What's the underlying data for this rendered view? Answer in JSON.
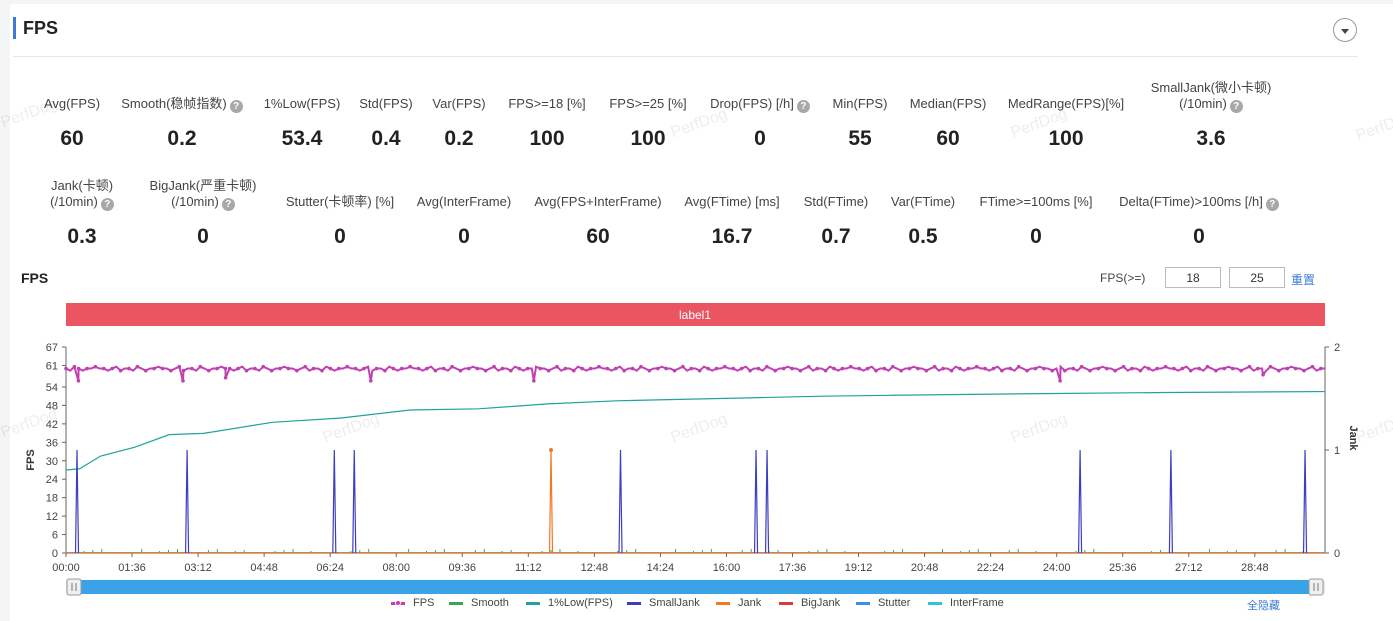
{
  "header": {
    "title": "FPS"
  },
  "metrics_row1": [
    {
      "label": "Avg(FPS)",
      "value": "60",
      "help": false,
      "cx": 72
    },
    {
      "label": "Smooth(稳帧指数)",
      "value": "0.2",
      "help": true,
      "cx": 182
    },
    {
      "label": "1%Low(FPS)",
      "value": "53.4",
      "help": false,
      "cx": 302
    },
    {
      "label": "Std(FPS)",
      "value": "0.4",
      "help": false,
      "cx": 386
    },
    {
      "label": "Var(FPS)",
      "value": "0.2",
      "help": false,
      "cx": 459
    },
    {
      "label": "FPS>=18 [%]",
      "value": "100",
      "help": false,
      "cx": 547
    },
    {
      "label": "FPS>=25 [%]",
      "value": "100",
      "help": false,
      "cx": 648
    },
    {
      "label": "Drop(FPS) [/h]",
      "value": "0",
      "help": true,
      "cx": 760
    },
    {
      "label": "Min(FPS)",
      "value": "55",
      "help": false,
      "cx": 860
    },
    {
      "label": "Median(FPS)",
      "value": "60",
      "help": false,
      "cx": 948
    },
    {
      "label": "MedRange(FPS)[%]",
      "value": "100",
      "help": false,
      "cx": 1066
    },
    {
      "label": "SmallJank(微小卡顿)",
      "label2": "(/10min)",
      "value": "3.6",
      "help": true,
      "cx": 1211
    }
  ],
  "metrics_row2": [
    {
      "label": "Jank(卡顿)",
      "label2": "(/10min)",
      "value": "0.3",
      "help": true,
      "cx": 82
    },
    {
      "label": "BigJank(严重卡顿)",
      "label2": "(/10min)",
      "value": "0",
      "help": true,
      "cx": 203
    },
    {
      "label": "Stutter(卡顿率) [%]",
      "value": "0",
      "help": false,
      "cx": 340
    },
    {
      "label": "Avg(InterFrame)",
      "value": "0",
      "help": false,
      "cx": 464
    },
    {
      "label": "Avg(FPS+InterFrame)",
      "value": "60",
      "help": false,
      "cx": 598
    },
    {
      "label": "Avg(FTime) [ms]",
      "value": "16.7",
      "help": false,
      "cx": 732
    },
    {
      "label": "Std(FTime)",
      "value": "0.7",
      "help": false,
      "cx": 836
    },
    {
      "label": "Var(FTime)",
      "value": "0.5",
      "help": false,
      "cx": 923
    },
    {
      "label": "FTime>=100ms [%]",
      "value": "0",
      "help": false,
      "cx": 1036
    },
    {
      "label": "Delta(FTime)>100ms [/h]",
      "value": "0",
      "help": true,
      "cx": 1199
    }
  ],
  "chart_section": {
    "title": "FPS",
    "threshold_label": "FPS(>=)",
    "threshold_1": "18",
    "threshold_2": "25",
    "reset_label": "重置",
    "label_bar": "label1",
    "hide_all_label": "全隐藏",
    "watermark": "PerfDog"
  },
  "chart_data": {
    "type": "line",
    "title": "FPS",
    "ylabel": "FPS",
    "y2label": "Jank",
    "ylim": [
      0,
      67
    ],
    "y2lim": [
      0,
      2
    ],
    "yticks": [
      "0",
      "6",
      "12",
      "18",
      "24",
      "30",
      "36",
      "42",
      "48",
      "54",
      "61",
      "67"
    ],
    "y2ticks": [
      "0",
      "1",
      "2"
    ],
    "x_range_seconds": [
      0,
      1830
    ],
    "xticks": [
      "00:00",
      "01:36",
      "03:12",
      "04:48",
      "06:24",
      "08:00",
      "09:36",
      "11:12",
      "12:48",
      "14:24",
      "16:00",
      "17:36",
      "19:12",
      "20:48",
      "22:24",
      "24:00",
      "25:36",
      "27:12",
      "28:48"
    ],
    "legend": [
      {
        "name": "FPS",
        "color": "#c040b0",
        "dot": true
      },
      {
        "name": "Smooth",
        "color": "#3aa655",
        "dot": false
      },
      {
        "name": "1%Low(FPS)",
        "color": "#1fa39a",
        "dot": false
      },
      {
        "name": "SmallJank",
        "color": "#3b3fbf",
        "dot": false
      },
      {
        "name": "Jank",
        "color": "#f07a22",
        "dot": false
      },
      {
        "name": "BigJank",
        "color": "#d93a3a",
        "dot": false
      },
      {
        "name": "Stutter",
        "color": "#3a8fe0",
        "dot": false
      },
      {
        "name": "InterFrame",
        "color": "#2fc4d8",
        "dot": false
      }
    ],
    "series": [
      {
        "name": "FPS",
        "approx_value": 60,
        "dips": [
          [
            18,
            56
          ],
          [
            170,
            56
          ],
          [
            232,
            57
          ],
          [
            443,
            56
          ],
          [
            680,
            56
          ],
          [
            1445,
            56
          ],
          [
            1740,
            58
          ]
        ]
      },
      {
        "name": "1%Low(FPS)",
        "points": [
          [
            0,
            27
          ],
          [
            20,
            28
          ],
          [
            50,
            31
          ],
          [
            100,
            35
          ],
          [
            150,
            38
          ],
          [
            200,
            39.5
          ],
          [
            300,
            42
          ],
          [
            400,
            44.5
          ],
          [
            500,
            46
          ],
          [
            600,
            47.5
          ],
          [
            700,
            48.5
          ],
          [
            800,
            49.5
          ],
          [
            900,
            50
          ],
          [
            1000,
            50.5
          ],
          [
            1100,
            51
          ],
          [
            1200,
            51.3
          ],
          [
            1400,
            51.8
          ],
          [
            1600,
            52.2
          ],
          [
            1830,
            52.5
          ]
        ]
      },
      {
        "name": "SmallJank",
        "spikes": [
          16,
          176,
          390,
          419,
          806,
          1003,
          1019,
          1474,
          1606,
          1801
        ]
      },
      {
        "name": "Jank",
        "spikes": [
          705
        ]
      }
    ]
  }
}
